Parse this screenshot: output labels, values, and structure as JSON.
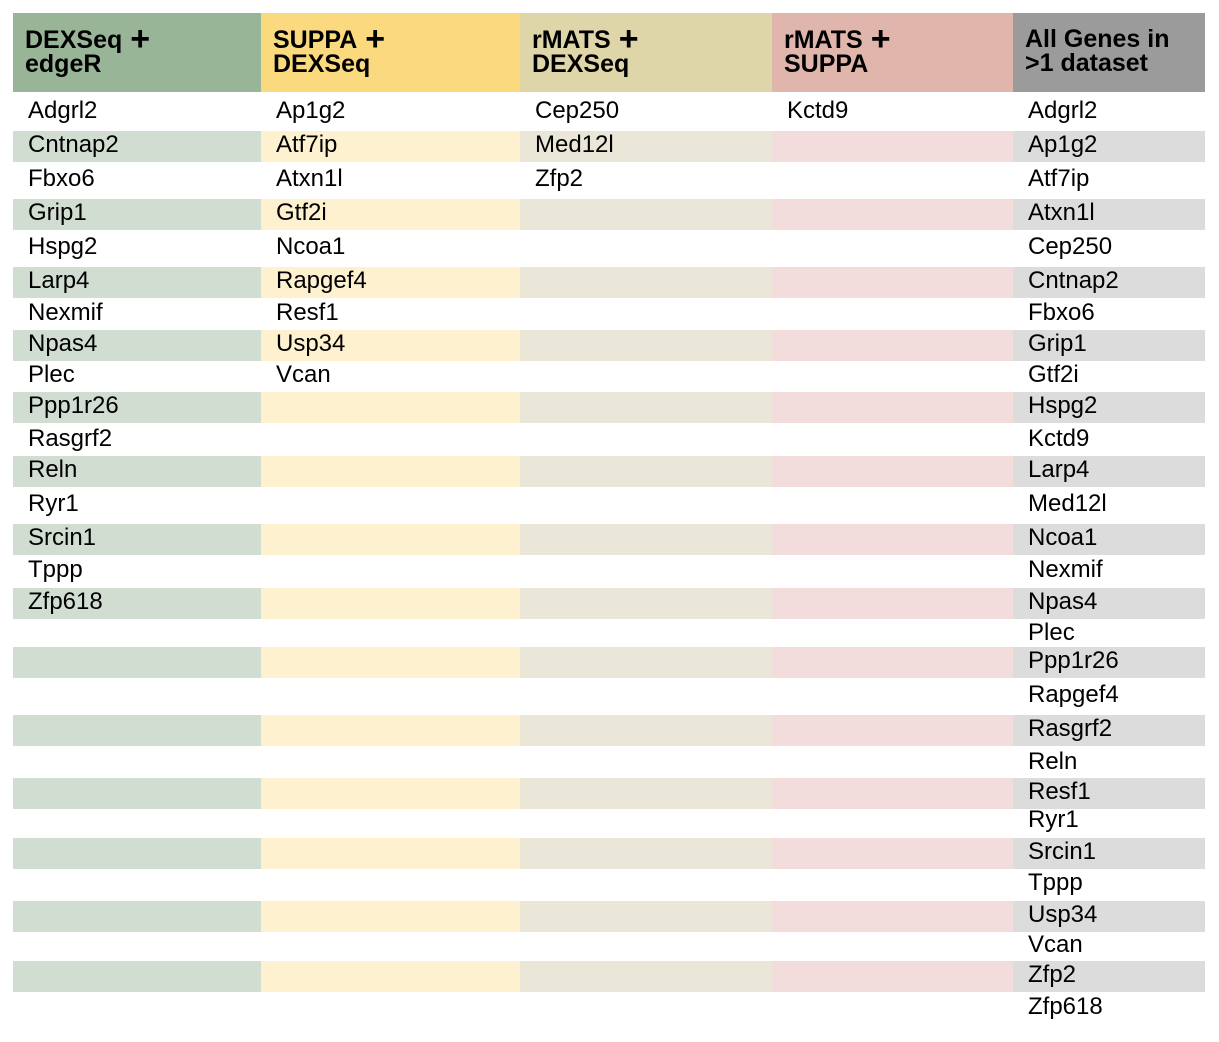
{
  "columns": [
    {
      "title_line1": "DEXSeq",
      "plus": "+",
      "title_line2": "edgeR",
      "header_color": "#98b598",
      "stripe_color": "#d2ddd2",
      "genes": [
        "Adgrl2",
        "Cntnap2",
        "Fbxo6",
        "Grip1",
        "Hspg2",
        "Larp4",
        "Nexmif",
        "Npas4",
        "Plec",
        "Ppp1r26",
        "Rasgrf2",
        "Reln",
        "Ryr1",
        "Srcin1",
        "Tppp",
        "Zfp618"
      ]
    },
    {
      "title_line1": "SUPPA",
      "plus": "+",
      "title_line2": "DEXSeq",
      "header_color": "#fbd97e",
      "stripe_color": "#fdf1d0",
      "genes": [
        "Ap1g2",
        "Atf7ip",
        "Atxn1l",
        "Gtf2i",
        "Ncoa1",
        "Rapgef4",
        "Resf1",
        "Usp34",
        "Vcan"
      ]
    },
    {
      "title_line1": "rMATS",
      "plus": "+",
      "title_line2": "DEXSeq",
      "header_color": "#ded5a8",
      "stripe_color": "#eae6d8",
      "genes": [
        "Cep250",
        "Med12l",
        "Zfp2"
      ]
    },
    {
      "title_line1": "rMATS",
      "plus": "+",
      "title_line2": "SUPPA",
      "header_color": "#dfb5ac",
      "stripe_color": "#f2dcdc",
      "genes": [
        "Kctd9"
      ]
    },
    {
      "title_line1": "All Genes in",
      "plus": "",
      "title_line2": ">1 dataset",
      "header_color": "#9b9b9b",
      "stripe_color": "#dcdcdc",
      "genes": [
        "Adgrl2",
        "Ap1g2",
        "Atf7ip",
        "Atxn1l",
        "Cep250",
        "Cntnap2",
        "Fbxo6",
        "Grip1",
        "Gtf2i",
        "Hspg2",
        "Kctd9",
        "Larp4",
        "Med12l",
        "Ncoa1",
        "Nexmif",
        "Npas4",
        "Plec",
        "Ppp1r26",
        "Rapgef4",
        "Rasgrf2",
        "Reln",
        "Resf1",
        "Ryr1",
        "Srcin1",
        "Tppp",
        "Usp34",
        "Vcan",
        "Zfp2",
        "Zfp618"
      ]
    }
  ]
}
